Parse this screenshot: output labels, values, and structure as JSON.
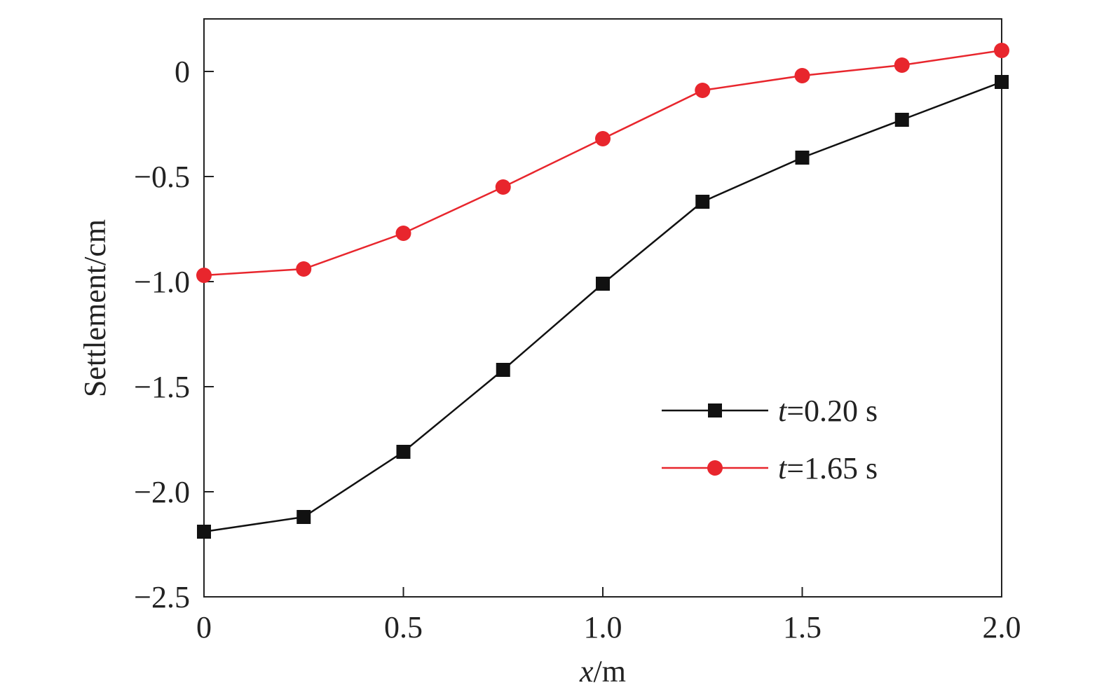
{
  "chart_data": {
    "type": "line",
    "xlabel_var": "x",
    "xlabel_unit": "/m",
    "ylabel": "Settlement/cm",
    "xlim": [
      0,
      2.0
    ],
    "ylim": [
      -2.5,
      0.25
    ],
    "x_ticks": [
      0,
      0.5,
      1.0,
      1.5,
      2.0
    ],
    "x_tick_labels": [
      "0",
      "0.5",
      "1.0",
      "1.5",
      "2.0"
    ],
    "y_ticks": [
      0,
      -0.5,
      -1.0,
      -1.5,
      -2.0,
      -2.5
    ],
    "y_tick_labels": [
      "0",
      "−0.5",
      "−1.0",
      "−1.5",
      "−2.0",
      "−2.5"
    ],
    "grid": false,
    "legend_position": "lower-right",
    "series": [
      {
        "name_var": "t",
        "name_rest": "=0.20 s",
        "color": "#111111",
        "marker": "square",
        "x": [
          0,
          0.25,
          0.5,
          0.75,
          1.0,
          1.25,
          1.5,
          1.75,
          2.0
        ],
        "y": [
          -2.19,
          -2.12,
          -1.81,
          -1.42,
          -1.01,
          -0.62,
          -0.41,
          -0.23,
          -0.05
        ]
      },
      {
        "name_var": "t",
        "name_rest": "=1.65 s",
        "color": "#e8262d",
        "marker": "circle",
        "x": [
          0,
          0.25,
          0.5,
          0.75,
          1.0,
          1.25,
          1.5,
          1.75,
          2.0
        ],
        "y": [
          -0.97,
          -0.94,
          -0.77,
          -0.55,
          -0.32,
          -0.09,
          -0.02,
          0.03,
          0.1
        ]
      }
    ]
  }
}
